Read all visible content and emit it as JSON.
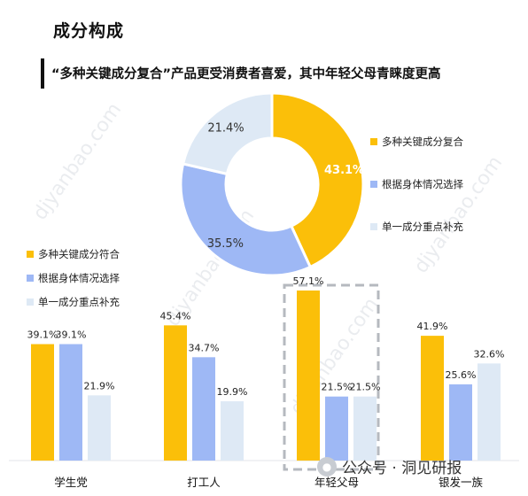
{
  "header": {
    "section_title": "成分构成",
    "subtitle": "“多种关键成分复合”产品更受消费者喜爱，其中年轻父母青睐度更高"
  },
  "watermark": "djyanbao.com",
  "footer": {
    "text": "公众号 · 洞见研报",
    "icon": "wechat-icon"
  },
  "colors": {
    "yellow": "#FBBF09",
    "blue": "#9EB8F5",
    "light": "#DEE9F5"
  },
  "chart_data": [
    {
      "type": "pie",
      "donut": true,
      "slices": [
        {
          "label": "多种关键成分复合",
          "value": 43.1,
          "display": "43.1%"
        },
        {
          "label": "根据身体情况选择",
          "value": 35.5,
          "display": "35.5%"
        },
        {
          "label": "单一成分重点补充",
          "value": 21.4,
          "display": "21.4%"
        }
      ],
      "legend_placement": "right"
    },
    {
      "type": "bar",
      "categories": [
        "学生党",
        "打工人",
        "年轻父母",
        "银发一族"
      ],
      "series": [
        {
          "name": "多种关键成分符合",
          "values": [
            39.1,
            45.4,
            57.1,
            41.9
          ]
        },
        {
          "name": "根据身体情况选择",
          "values": [
            39.1,
            34.7,
            21.5,
            25.6
          ]
        },
        {
          "name": "单一成分重点补充",
          "values": [
            21.9,
            19.9,
            21.5,
            32.6
          ]
        }
      ],
      "value_suffix": "%",
      "highlight_category": "年轻父母",
      "legend_placement": "top-left",
      "grid": false
    }
  ]
}
